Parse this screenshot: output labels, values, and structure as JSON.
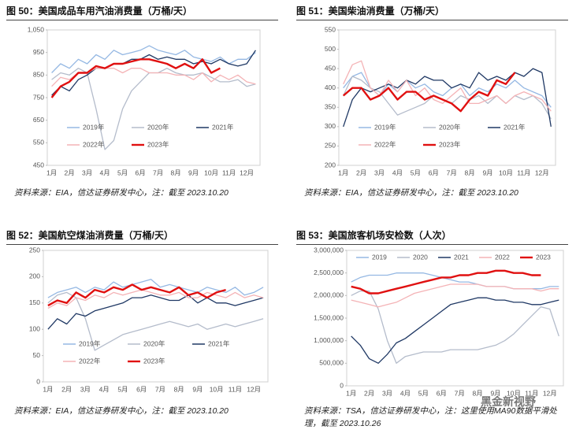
{
  "chart_data": [
    {
      "type": "line",
      "title": "图 50：美国成品车用汽油消费量（万桶/天）",
      "source": "资料来源：EIA，信达证券研发中心，注：截至 2023.10.20",
      "categories": [
        "1月",
        null,
        "2月",
        null,
        "3月",
        null,
        "4月",
        null,
        "5月",
        null,
        "6月",
        null,
        "7月",
        null,
        "8月",
        null,
        "9月",
        null,
        "10月",
        null,
        "11月",
        null,
        "12月",
        null
      ],
      "ylim": [
        450,
        1050
      ],
      "yticks": [
        450,
        550,
        650,
        750,
        850,
        950,
        {
          "value": 1050,
          "label": "1,050"
        }
      ],
      "grid": false,
      "legend": "bottom",
      "series": [
        {
          "name": "2019年",
          "color": "#95b8e3",
          "values": [
            860,
            900,
            880,
            920,
            900,
            940,
            920,
            960,
            940,
            950,
            960,
            980,
            960,
            950,
            940,
            960,
            930,
            920,
            910,
            930,
            900,
            920,
            920,
            950
          ]
        },
        {
          "name": "2020年",
          "color": "#b4bccb",
          "values": [
            830,
            860,
            850,
            880,
            860,
            700,
            520,
            560,
            700,
            780,
            820,
            860,
            860,
            880,
            860,
            850,
            850,
            860,
            840,
            820,
            820,
            830,
            800,
            810
          ]
        },
        {
          "name": "2021年",
          "color": "#1f3864",
          "values": [
            760,
            800,
            780,
            830,
            850,
            880,
            880,
            900,
            900,
            920,
            920,
            940,
            920,
            930,
            920,
            920,
            900,
            910,
            900,
            920,
            900,
            890,
            900,
            960
          ]
        },
        {
          "name": "2022年",
          "color": "#f4b3b6",
          "values": [
            800,
            840,
            830,
            860,
            860,
            880,
            880,
            880,
            860,
            880,
            880,
            860,
            860,
            860,
            850,
            850,
            830,
            860,
            820,
            850,
            830,
            850,
            820,
            810
          ]
        },
        {
          "name": "2023年",
          "color": "#e01010",
          "values": [
            750,
            800,
            820,
            860,
            860,
            890,
            880,
            900,
            900,
            910,
            920,
            920,
            910,
            900,
            880,
            900,
            880,
            920,
            860,
            880,
            null,
            null,
            null,
            null
          ]
        }
      ]
    },
    {
      "type": "line",
      "title": "图 51：美国柴油消费量（万桶/天）",
      "source": "资料来源：EIA，信达证券研发中心，注：截至 2023.10.20",
      "categories": [
        "1月",
        null,
        "2月",
        null,
        "3月",
        null,
        "4月",
        null,
        "5月",
        null,
        "6月",
        null,
        "7月",
        null,
        "8月",
        null,
        "9月",
        null,
        "10月",
        null,
        "11月",
        null,
        "12月",
        null
      ],
      "ylim": [
        200,
        550
      ],
      "yticks": [
        200,
        250,
        300,
        350,
        400,
        450,
        500,
        550
      ],
      "grid": false,
      "legend": "bottom",
      "series": [
        {
          "name": "2019年",
          "color": "#95b8e3",
          "values": [
            400,
            430,
            440,
            400,
            380,
            410,
            390,
            420,
            400,
            410,
            390,
            380,
            400,
            410,
            380,
            400,
            390,
            410,
            400,
            420,
            400,
            390,
            380,
            350
          ]
        },
        {
          "name": "2020年",
          "color": "#b4bccb",
          "values": [
            380,
            430,
            420,
            400,
            390,
            360,
            330,
            340,
            350,
            360,
            380,
            370,
            360,
            380,
            370,
            380,
            360,
            380,
            360,
            380,
            370,
            380,
            360,
            320
          ]
        },
        {
          "name": "2021年",
          "color": "#1f3864",
          "values": [
            300,
            370,
            400,
            390,
            400,
            410,
            400,
            420,
            410,
            430,
            420,
            420,
            400,
            410,
            400,
            440,
            420,
            430,
            420,
            440,
            430,
            450,
            440,
            300
          ]
        },
        {
          "name": "2022年",
          "color": "#f4b3b6",
          "values": [
            410,
            460,
            470,
            400,
            380,
            420,
            390,
            420,
            380,
            400,
            370,
            360,
            380,
            400,
            360,
            360,
            370,
            380,
            360,
            380,
            390,
            380,
            370,
            340
          ]
        },
        {
          "name": "2023年",
          "color": "#e01010",
          "values": [
            380,
            400,
            400,
            370,
            380,
            400,
            370,
            390,
            390,
            370,
            380,
            370,
            360,
            340,
            370,
            390,
            380,
            420,
            410,
            440,
            null,
            null,
            null,
            null
          ]
        }
      ]
    },
    {
      "type": "line",
      "title": "图 52：美国航空煤油消费量（万桶/天）",
      "source": "资料来源：EIA，信达证券研发中心，注：截至 2023.10.20",
      "categories": [
        "1月",
        null,
        "2月",
        null,
        "3月",
        null,
        "4月",
        null,
        "5月",
        null,
        "6月",
        null,
        "7月",
        null,
        "8月",
        null,
        "9月",
        null,
        "10月",
        null,
        "11月",
        null,
        "12月",
        null
      ],
      "ylim": [
        0,
        250
      ],
      "yticks": [
        0,
        50,
        100,
        150,
        200,
        250
      ],
      "grid": false,
      "legend": "bottom",
      "series": [
        {
          "name": "2019年",
          "color": "#95b8e3",
          "values": [
            160,
            170,
            175,
            180,
            170,
            180,
            175,
            190,
            180,
            185,
            190,
            195,
            180,
            185,
            180,
            175,
            170,
            180,
            175,
            170,
            180,
            165,
            170,
            180
          ]
        },
        {
          "name": "2020年",
          "color": "#b4bccb",
          "values": [
            150,
            165,
            170,
            160,
            120,
            60,
            70,
            80,
            90,
            95,
            100,
            105,
            110,
            115,
            110,
            105,
            110,
            100,
            105,
            110,
            105,
            110,
            115,
            120
          ]
        },
        {
          "name": "2021年",
          "color": "#1f3864",
          "values": [
            100,
            120,
            110,
            130,
            125,
            135,
            140,
            145,
            150,
            160,
            160,
            165,
            160,
            155,
            155,
            165,
            150,
            160,
            150,
            150,
            145,
            150,
            155,
            160
          ]
        },
        {
          "name": "2022年",
          "color": "#f4b3b6",
          "values": [
            140,
            150,
            145,
            160,
            155,
            165,
            160,
            170,
            165,
            170,
            175,
            170,
            165,
            165,
            170,
            160,
            160,
            170,
            165,
            160,
            170,
            160,
            165,
            160
          ]
        },
        {
          "name": "2023年",
          "color": "#e01010",
          "values": [
            145,
            155,
            150,
            170,
            160,
            175,
            170,
            180,
            175,
            185,
            175,
            180,
            175,
            170,
            180,
            165,
            170,
            160,
            170,
            175,
            null,
            null,
            null,
            null
          ]
        }
      ]
    },
    {
      "type": "line",
      "title": "图 53：美国旅客机场安检数（人次）",
      "source": "资料来源：TSA，信达证券研发中心，注：这里使用MA90数据平滑处理，截至 2023.10.26",
      "categories": [
        "1月",
        null,
        "2月",
        null,
        "3月",
        null,
        "4月",
        null,
        "5月",
        null,
        "6月",
        null,
        "7月",
        null,
        "8月",
        null,
        "9月",
        null,
        "10月",
        null,
        "11月",
        null,
        "12月",
        null
      ],
      "ylim": [
        0,
        3000000
      ],
      "yticks": [
        0,
        {
          "value": 500000,
          "label": "500,000"
        },
        {
          "value": 1000000,
          "label": "1,000,000"
        },
        {
          "value": 1500000,
          "label": "1,500,000"
        },
        {
          "value": 2000000,
          "label": "2,000,000"
        },
        {
          "value": 2500000,
          "label": "2,500,000"
        },
        {
          "value": 3000000,
          "label": "3,000,000"
        }
      ],
      "grid": false,
      "legend": "top",
      "series": [
        {
          "name": "2019",
          "color": "#95b8e3",
          "values": [
            2300000,
            2400000,
            2450000,
            2450000,
            2450000,
            2500000,
            2500000,
            2500000,
            2500000,
            2450000,
            2400000,
            2350000,
            2300000,
            2300000,
            2250000,
            2200000,
            2200000,
            2200000,
            2150000,
            2150000,
            2150000,
            2150000,
            2200000,
            2200000
          ]
        },
        {
          "name": "2020",
          "color": "#b4bccb",
          "values": [
            2000000,
            2100000,
            2100000,
            1700000,
            1000000,
            500000,
            650000,
            700000,
            750000,
            750000,
            750000,
            800000,
            800000,
            800000,
            800000,
            850000,
            900000,
            1000000,
            1150000,
            1350000,
            1550000,
            1750000,
            1700000,
            1100000
          ]
        },
        {
          "name": "2021",
          "color": "#1f3864",
          "values": [
            1100000,
            900000,
            600000,
            500000,
            700000,
            950000,
            1050000,
            1200000,
            1350000,
            1500000,
            1650000,
            1800000,
            1850000,
            1900000,
            1950000,
            1950000,
            1900000,
            1900000,
            1850000,
            1850000,
            1800000,
            1800000,
            1850000,
            1900000
          ]
        },
        {
          "name": "2022",
          "color": "#f4b3b6",
          "values": [
            1900000,
            1850000,
            1800000,
            1750000,
            1800000,
            1850000,
            1950000,
            2050000,
            2100000,
            2150000,
            2200000,
            2250000,
            2250000,
            2250000,
            2250000,
            2200000,
            2200000,
            2200000,
            2150000,
            2150000,
            2150000,
            2100000,
            2150000,
            2150000
          ]
        },
        {
          "name": "2023",
          "color": "#e01010",
          "values": [
            2200000,
            2150000,
            2050000,
            2050000,
            2100000,
            2150000,
            2200000,
            2250000,
            2300000,
            2350000,
            2400000,
            2400000,
            2450000,
            2450000,
            2500000,
            2500000,
            2550000,
            2550000,
            2500000,
            2500000,
            2450000,
            2450000,
            null,
            null
          ]
        }
      ]
    }
  ],
  "watermark": "黑金新视野"
}
